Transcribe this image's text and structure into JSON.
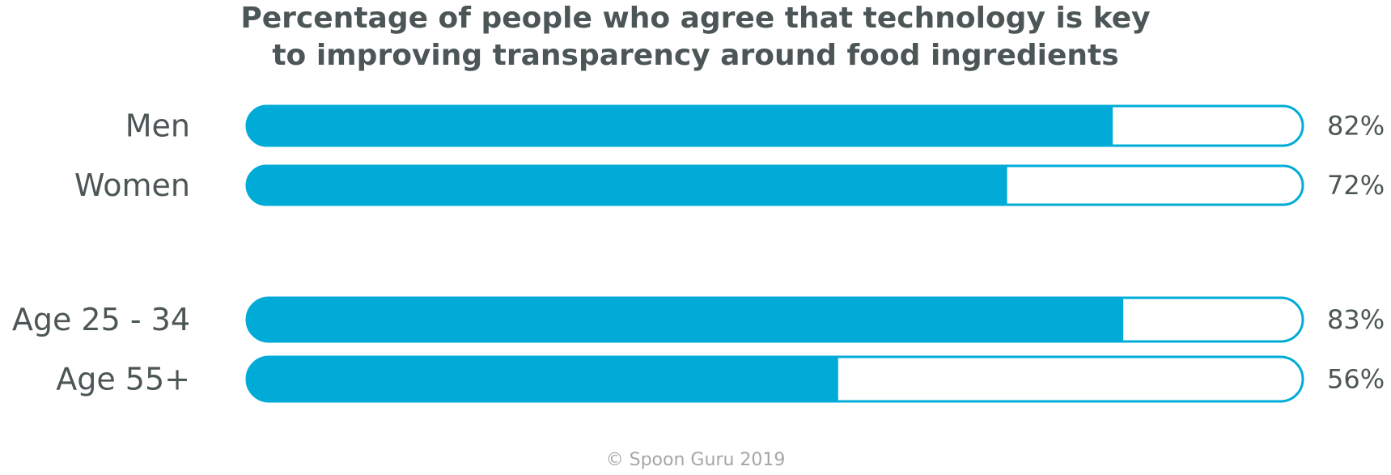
{
  "chart_data": {
    "type": "bar",
    "orientation": "horizontal",
    "title_lines": [
      "Percentage of people who agree that technology is key",
      "to improving transparency around food ingredients"
    ],
    "categories": [
      "Men",
      "Women",
      "Age 25 - 34",
      "Age 55+"
    ],
    "values": [
      82,
      72,
      83,
      56
    ],
    "value_labels": [
      "82%",
      "72%",
      "83%",
      "56%"
    ],
    "xlim": [
      0,
      100
    ],
    "grid": false,
    "legend": "none",
    "colors": {
      "bar": "#00acd7",
      "text": "#4d5656",
      "footer": "#a6a6a6"
    }
  },
  "footer": {
    "copyright": "© Spoon Guru 2019"
  }
}
